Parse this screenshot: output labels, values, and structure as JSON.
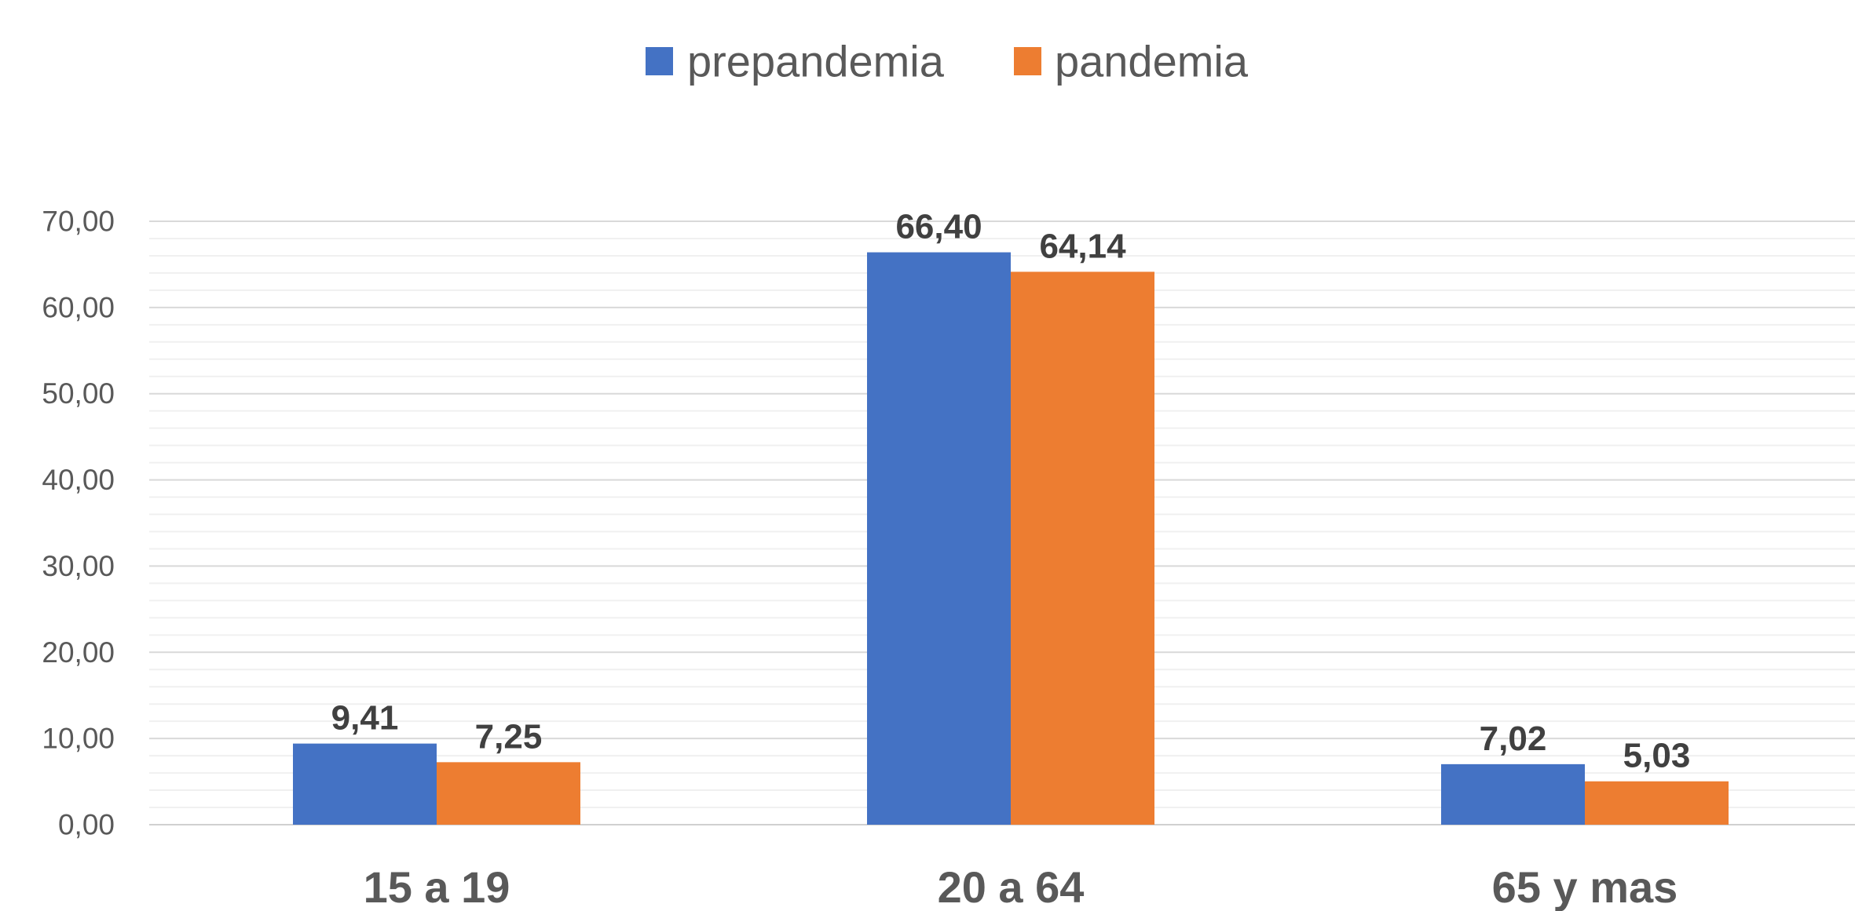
{
  "chart_data": {
    "type": "bar",
    "categories": [
      "15 a 19",
      "20 a 64",
      "65 y mas"
    ],
    "series": [
      {
        "name": "prepandemia",
        "color": "#4472C4",
        "values": [
          9.41,
          66.4,
          7.02
        ],
        "labels": [
          "9,41",
          "66,40",
          "7,02"
        ]
      },
      {
        "name": "pandemia",
        "color": "#ED7D31",
        "values": [
          7.25,
          64.14,
          5.03
        ],
        "labels": [
          "7,25",
          "64,14",
          "5,03"
        ]
      }
    ],
    "y_ticks": [
      0,
      10,
      20,
      30,
      40,
      50,
      60,
      70
    ],
    "y_tick_labels": [
      "0,00",
      "10,00",
      "20,00",
      "30,00",
      "40,00",
      "50,00",
      "60,00",
      "70,00"
    ],
    "ylim": [
      0,
      70
    ],
    "minor_gridlines": true,
    "legend_position": "top-center",
    "title": "",
    "xlabel": "",
    "ylabel": ""
  }
}
